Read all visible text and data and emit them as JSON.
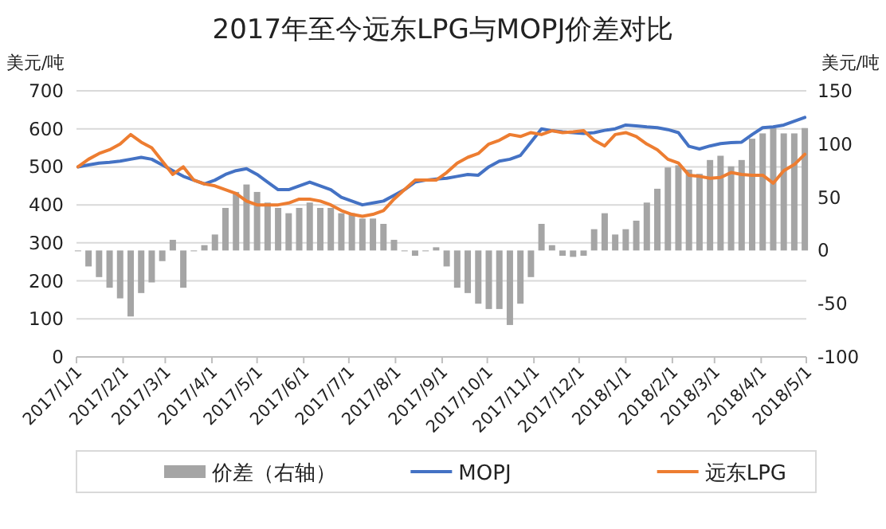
{
  "chart_data": {
    "type": "line",
    "title": "2017年至今远东LPG与MOPJ价差对比",
    "ylabel": "美元/吨",
    "y2label": "美元/吨",
    "x": [
      "2017-01-02",
      "2017-01-09",
      "2017-01-16",
      "2017-01-23",
      "2017-01-30",
      "2017-02-06",
      "2017-02-13",
      "2017-02-20",
      "2017-02-27",
      "2017-03-06",
      "2017-03-13",
      "2017-03-20",
      "2017-03-27",
      "2017-04-03",
      "2017-04-10",
      "2017-04-17",
      "2017-04-24",
      "2017-05-01",
      "2017-05-08",
      "2017-05-15",
      "2017-05-22",
      "2017-05-29",
      "2017-06-05",
      "2017-06-12",
      "2017-06-19",
      "2017-06-26",
      "2017-07-03",
      "2017-07-10",
      "2017-07-17",
      "2017-07-24",
      "2017-07-31",
      "2017-08-07",
      "2017-08-14",
      "2017-08-21",
      "2017-08-28",
      "2017-09-04",
      "2017-09-11",
      "2017-09-18",
      "2017-09-25",
      "2017-10-02",
      "2017-10-09",
      "2017-10-16",
      "2017-10-23",
      "2017-10-30",
      "2017-11-06",
      "2017-11-13",
      "2017-11-20",
      "2017-11-27",
      "2017-12-04",
      "2017-12-11",
      "2017-12-18",
      "2017-12-25",
      "2018-01-01",
      "2018-01-08",
      "2018-01-15",
      "2018-01-22",
      "2018-01-29",
      "2018-02-05",
      "2018-02-12",
      "2018-02-19",
      "2018-02-26",
      "2018-03-05",
      "2018-03-12",
      "2018-03-19",
      "2018-03-26",
      "2018-04-02",
      "2018-04-09",
      "2018-04-16",
      "2018-04-23",
      "2018-04-30"
    ],
    "xlim": [
      "2017-01-01",
      "2018-05-01"
    ],
    "xticks": [
      {
        "value": "2017-01-01",
        "label": "2017/1/1"
      },
      {
        "value": "2017-02-01",
        "label": "2017/2/1"
      },
      {
        "value": "2017-03-01",
        "label": "2017/3/1"
      },
      {
        "value": "2017-04-01",
        "label": "2017/4/1"
      },
      {
        "value": "2017-05-01",
        "label": "2017/5/1"
      },
      {
        "value": "2017-06-01",
        "label": "2017/6/1"
      },
      {
        "value": "2017-07-01",
        "label": "2017/7/1"
      },
      {
        "value": "2017-08-01",
        "label": "2017/8/1"
      },
      {
        "value": "2017-09-01",
        "label": "2017/9/1"
      },
      {
        "value": "2017-10-01",
        "label": "2017/10/1"
      },
      {
        "value": "2017-11-01",
        "label": "2017/11/1"
      },
      {
        "value": "2017-12-01",
        "label": "2017/12/1"
      },
      {
        "value": "2018-01-01",
        "label": "2018/1/1"
      },
      {
        "value": "2018-02-01",
        "label": "2018/2/1"
      },
      {
        "value": "2018-03-01",
        "label": "2018/3/1"
      },
      {
        "value": "2018-04-01",
        "label": "2018/4/1"
      },
      {
        "value": "2018-05-01",
        "label": "2018/5/1"
      }
    ],
    "ylim": [
      0,
      700
    ],
    "yticks": [
      0,
      100,
      200,
      300,
      400,
      500,
      600,
      700
    ],
    "y2lim": [
      -100,
      150
    ],
    "y2ticks": [
      -100,
      -50,
      0,
      50,
      100,
      150
    ],
    "grid": "y",
    "legend": "bottom",
    "marker": "none",
    "line_style": "solid",
    "series": [
      {
        "name": "价差（右轴）",
        "type": "bar",
        "axis": "y2",
        "color": "#a5a5a5",
        "values": [
          0,
          -15,
          -25,
          -35,
          -45,
          -62,
          -40,
          -30,
          -10,
          10,
          -35,
          0,
          5,
          15,
          40,
          55,
          62,
          55,
          45,
          40,
          35,
          40,
          45,
          40,
          40,
          35,
          35,
          30,
          30,
          25,
          10,
          0,
          -5,
          0,
          3,
          -15,
          -35,
          -40,
          -50,
          -55,
          -55,
          -70,
          -50,
          -25,
          25,
          5,
          -5,
          -6,
          -5,
          20,
          35,
          15,
          20,
          28,
          45,
          58,
          78,
          80,
          76,
          72,
          85,
          89,
          79,
          85,
          105,
          110,
          115,
          110,
          110,
          115
        ]
      },
      {
        "name": "MOPJ",
        "color": "#4472c4",
        "values": [
          500,
          505,
          510,
          512,
          515,
          520,
          525,
          520,
          505,
          490,
          475,
          465,
          455,
          465,
          480,
          490,
          495,
          480,
          460,
          440,
          440,
          450,
          460,
          450,
          440,
          420,
          410,
          400,
          405,
          410,
          425,
          440,
          460,
          465,
          468,
          470,
          475,
          480,
          478,
          500,
          515,
          520,
          530,
          565,
          600,
          595,
          592,
          590,
          588,
          590,
          596,
          600,
          610,
          608,
          605,
          603,
          598,
          590,
          554,
          547,
          555,
          561,
          564,
          565,
          585,
          603,
          605,
          610,
          620,
          630
        ]
      },
      {
        "name": "远东LPG",
        "color": "#ed7d31",
        "values": [
          500,
          520,
          535,
          545,
          560,
          585,
          565,
          550,
          515,
          480,
          500,
          465,
          455,
          450,
          440,
          430,
          410,
          400,
          400,
          400,
          405,
          415,
          415,
          410,
          400,
          385,
          375,
          370,
          375,
          385,
          415,
          440,
          465,
          465,
          465,
          485,
          510,
          525,
          535,
          560,
          570,
          585,
          580,
          590,
          585,
          595,
          590,
          592,
          595,
          570,
          555,
          585,
          590,
          580,
          560,
          545,
          520,
          510,
          478,
          475,
          470,
          472,
          485,
          480,
          478,
          478,
          457,
          490,
          506,
          533
        ]
      }
    ]
  }
}
